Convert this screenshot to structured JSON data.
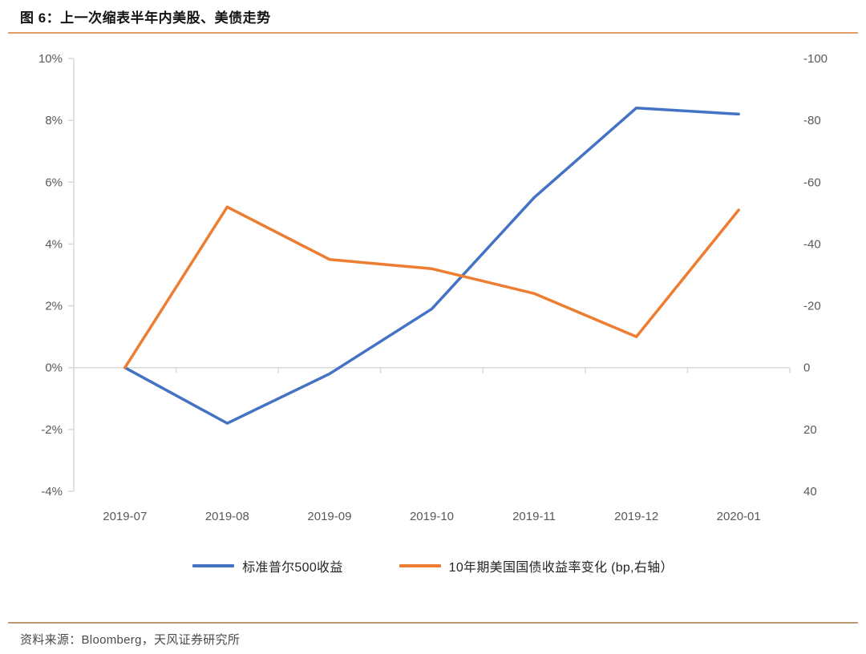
{
  "figure": {
    "title": "图 6：上一次缩表半年内美股、美债走势",
    "source": "资料来源：Bloomberg，天风证券研究所"
  },
  "colors": {
    "sp500_line": "#4472C4",
    "treasury_line": "#ED7D31",
    "title_rule": "#E59C6B",
    "footer_rule": "#BD9971",
    "axis_line": "#D9D9D9",
    "axis_text": "#595959",
    "legend_text": "#262626"
  },
  "chart_data": {
    "type": "line",
    "x": [
      "2019-07",
      "2019-08",
      "2019-09",
      "2019-10",
      "2019-11",
      "2019-12",
      "2020-01"
    ],
    "series": [
      {
        "name": "标准普尔500收益",
        "axis": "left",
        "unit": "%",
        "color_key": "sp500_line",
        "values": [
          0,
          -1.8,
          -0.2,
          1.9,
          5.5,
          8.4,
          8.2
        ]
      },
      {
        "name": "10年期美国国债收益率变化 (bp,右轴）",
        "axis": "right",
        "unit": "bp",
        "color_key": "treasury_line",
        "values": [
          0,
          -52,
          -35,
          -32,
          -24,
          -10,
          -51
        ]
      }
    ],
    "left_axis": {
      "ticks": [
        "10%",
        "8%",
        "6%",
        "4%",
        "2%",
        "0%",
        "-2%",
        "-4%"
      ],
      "max": 10,
      "min": -4
    },
    "right_axis": {
      "ticks": [
        "-100",
        "-80",
        "-60",
        "-40",
        "-20",
        "0",
        "20",
        "40"
      ],
      "max": 40,
      "min": -100,
      "inverted": true
    },
    "grid": "zero-line-only",
    "legend_position": "bottom"
  }
}
